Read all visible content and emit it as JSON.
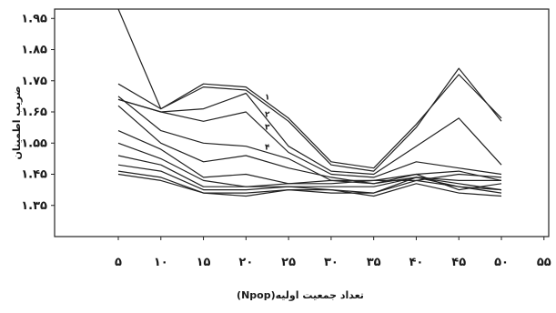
{
  "chart_data": {
    "type": "line",
    "title": "",
    "xlabel": "تعداد جمعیت اولیه(Npop)",
    "ylabel": "ضریب اطمینان",
    "xlim": [
      5,
      55
    ],
    "ylim": [
      1.25,
      1.98
    ],
    "x": [
      5,
      10,
      15,
      20,
      25,
      30,
      35,
      40,
      45,
      50
    ],
    "xticks": [
      5,
      10,
      15,
      20,
      25,
      30,
      35,
      40,
      45,
      50,
      55
    ],
    "xtick_labels": [
      "۵",
      "۱۰",
      "۱۵",
      "۲۰",
      "۲۵",
      "۳۰",
      "۳۵",
      "۴۰",
      "۴۵",
      "۵۰",
      "۵۵"
    ],
    "yticks": [
      1.35,
      1.45,
      1.55,
      1.65,
      1.75,
      1.85,
      1.95
    ],
    "ytick_labels": [
      "۱.۳۵",
      "۱.۴۵",
      "۱.۵۵",
      "۱.۶۵",
      "۱.۷۵",
      "۱.۸۵",
      "۱.۹۵"
    ],
    "grid": false,
    "series": [
      {
        "label": "",
        "values": [
          1.99,
          1.66,
          1.73,
          1.72,
          1.62,
          1.48,
          1.46,
          1.6,
          1.79,
          1.62
        ]
      },
      {
        "label": "۱",
        "values": [
          1.74,
          1.66,
          1.74,
          1.73,
          1.63,
          1.49,
          1.47,
          1.61,
          1.77,
          1.63
        ]
      },
      {
        "label": "۲",
        "values": [
          1.69,
          1.65,
          1.66,
          1.71,
          1.54,
          1.46,
          1.45,
          1.54,
          1.63,
          1.48
        ]
      },
      {
        "label": "۳",
        "values": [
          1.69,
          1.65,
          1.62,
          1.65,
          1.52,
          1.45,
          1.44,
          1.49,
          1.47,
          1.45
        ]
      },
      {
        "label": "۴",
        "values": [
          1.7,
          1.59,
          1.55,
          1.54,
          1.5,
          1.43,
          1.43,
          1.43,
          1.45,
          1.44
        ]
      },
      {
        "label": "",
        "values": [
          1.67,
          1.55,
          1.49,
          1.51,
          1.47,
          1.44,
          1.42,
          1.45,
          1.46,
          1.43
        ]
      },
      {
        "label": "",
        "values": [
          1.59,
          1.53,
          1.44,
          1.45,
          1.42,
          1.42,
          1.43,
          1.45,
          1.4,
          1.42
        ]
      },
      {
        "label": "",
        "values": [
          1.55,
          1.5,
          1.43,
          1.41,
          1.42,
          1.43,
          1.42,
          1.44,
          1.43,
          1.43
        ]
      },
      {
        "label": "",
        "values": [
          1.51,
          1.48,
          1.41,
          1.41,
          1.41,
          1.41,
          1.41,
          1.44,
          1.42,
          1.4
        ]
      },
      {
        "label": "",
        "values": [
          1.48,
          1.46,
          1.4,
          1.4,
          1.41,
          1.4,
          1.39,
          1.44,
          1.41,
          1.4
        ]
      },
      {
        "label": "",
        "values": [
          1.46,
          1.44,
          1.39,
          1.39,
          1.4,
          1.39,
          1.39,
          1.43,
          1.41,
          1.39
        ]
      },
      {
        "label": "",
        "values": [
          1.45,
          1.43,
          1.39,
          1.38,
          1.4,
          1.4,
          1.38,
          1.42,
          1.39,
          1.38
        ]
      }
    ]
  }
}
